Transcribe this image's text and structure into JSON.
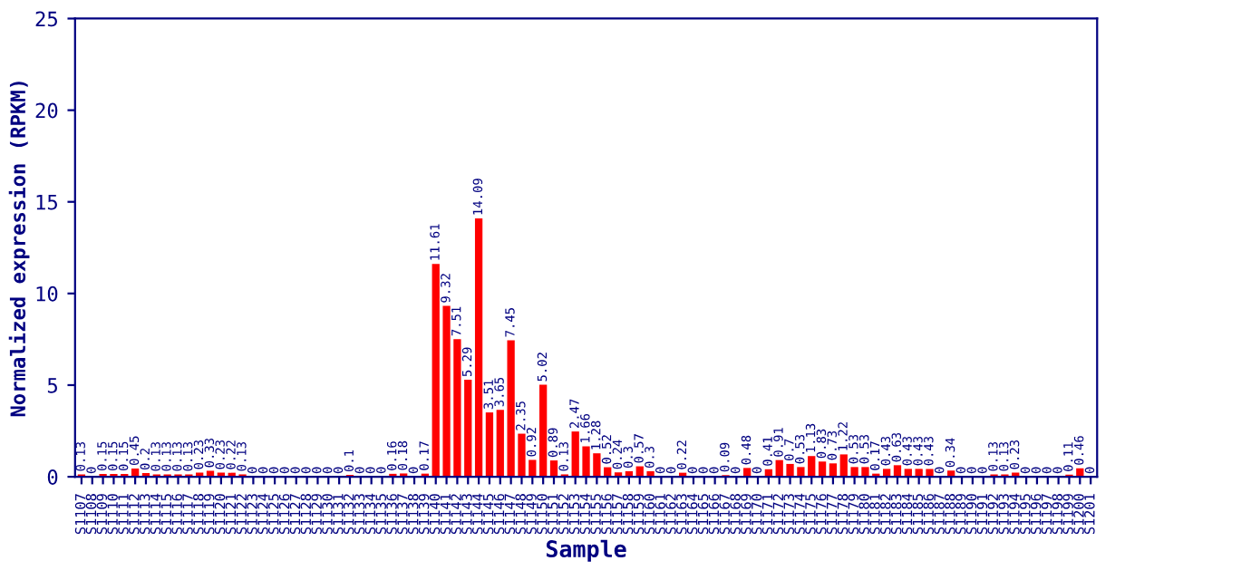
{
  "chart_data": {
    "type": "bar",
    "xlabel": "Sample",
    "ylabel": "Normalized expression (RPKM)",
    "categories": [
      "S1107",
      "S1108",
      "S1109",
      "S1110",
      "S1111",
      "S1112",
      "S1113",
      "S1114",
      "S1115",
      "S1116",
      "S1117",
      "S1118",
      "S1119",
      "S1120",
      "S1121",
      "S1122",
      "S1123",
      "S1124",
      "S1125",
      "S1126",
      "S1127",
      "S1128",
      "S1129",
      "S1130",
      "S1131",
      "S1132",
      "S1133",
      "S1134",
      "S1135",
      "S1136",
      "S1137",
      "S1138",
      "S1139",
      "S1140",
      "S1141",
      "S1142",
      "S1143",
      "S1144",
      "S1145",
      "S1146",
      "S1147",
      "S1148",
      "S1149",
      "S1150",
      "S1151",
      "S1152",
      "S1153",
      "S1154",
      "S1155",
      "S1156",
      "S1157",
      "S1158",
      "S1159",
      "S1160",
      "S1161",
      "S1162",
      "S1163",
      "S1164",
      "S1165",
      "S1166",
      "S1167",
      "S1168",
      "S1169",
      "S1170",
      "S1171",
      "S1172",
      "S1173",
      "S1174",
      "S1175",
      "S1176",
      "S1177",
      "S1178",
      "S1179",
      "S1180",
      "S1181",
      "S1182",
      "S1183",
      "S1184",
      "S1185",
      "S1186",
      "S1187",
      "S1188",
      "S1189",
      "S1190",
      "S1191",
      "S1192",
      "S1193",
      "S1194",
      "S1195",
      "S1196",
      "S1197",
      "S1198",
      "S1199",
      "S1200",
      "S1201"
    ],
    "values": [
      0.13,
      0,
      0.15,
      0.15,
      0.15,
      0.45,
      0.2,
      0.13,
      0.13,
      0.13,
      0.13,
      0.23,
      0.33,
      0.23,
      0.22,
      0.13,
      0,
      0,
      0,
      0,
      0,
      0,
      0,
      0,
      0,
      0.1,
      0,
      0,
      0,
      0.16,
      0.18,
      0,
      0.17,
      11.61,
      9.32,
      7.51,
      5.29,
      14.09,
      3.51,
      3.65,
      7.45,
      2.35,
      0.92,
      5.02,
      0.89,
      0.13,
      2.47,
      1.66,
      1.28,
      0.52,
      0.24,
      0.3,
      0.57,
      0.3,
      0,
      0,
      0.22,
      0,
      0,
      0,
      0.09,
      0,
      0.48,
      0,
      0.41,
      0.91,
      0.7,
      0.53,
      1.13,
      0.83,
      0.73,
      1.22,
      0.53,
      0.53,
      0.17,
      0.43,
      0.63,
      0.43,
      0.43,
      0.43,
      0,
      0.34,
      0,
      0,
      0,
      0.13,
      0.13,
      0.23,
      0,
      0,
      0,
      0,
      0.11,
      0.46,
      0
    ],
    "color": "#ff0000",
    "ylim": [
      0,
      25
    ],
    "yticks": [
      0,
      5,
      10,
      15,
      20,
      25
    ],
    "grid": false,
    "legend": false,
    "data_labels": true
  }
}
